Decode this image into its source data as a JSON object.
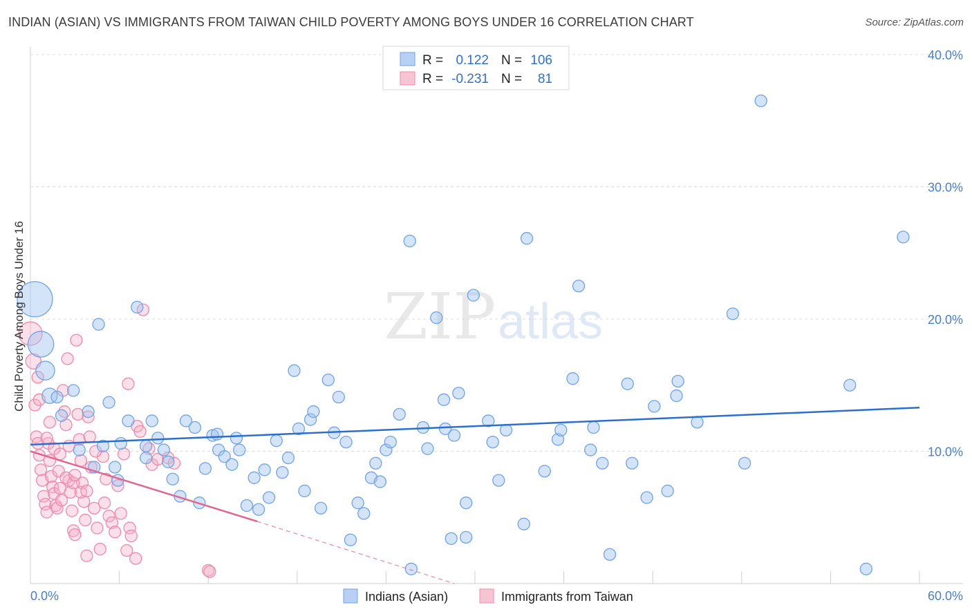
{
  "title": "INDIAN (ASIAN) VS IMMIGRANTS FROM TAIWAN CHILD POVERTY AMONG BOYS UNDER 16 CORRELATION CHART",
  "source": "Source: ZipAtlas.com",
  "watermark": {
    "zip": "ZIP",
    "atlas": "atlas"
  },
  "colors": {
    "blue": "#6fa3e6",
    "blue_line": "#2a6fd0",
    "pink": "#f08aa8",
    "pink_line": "#e06890",
    "tick": "#4a7fc8"
  },
  "legend": {
    "r_label": "R =",
    "n_label": "N =",
    "series": [
      {
        "r": "0.122",
        "n": "106"
      },
      {
        "r": "-0.231",
        "n": "81"
      }
    ]
  },
  "chart_data": {
    "type": "scatter",
    "title": "INDIAN (ASIAN) VS IMMIGRANTS FROM TAIWAN CHILD POVERTY AMONG BOYS UNDER 16 CORRELATION CHART",
    "xlabel": "",
    "ylabel": "Child Poverty Among Boys Under 16",
    "xlim": [
      0,
      60
    ],
    "ylim": [
      0,
      40
    ],
    "x_tick_labels": [
      "0.0%",
      "60.0%"
    ],
    "y_ticks": [
      10,
      20,
      30,
      40
    ],
    "y_tick_labels": [
      "10.0%",
      "20.0%",
      "30.0%",
      "40.0%"
    ],
    "series": [
      {
        "name": "Indians (Asian)",
        "color": "#6fa3e6",
        "trend": {
          "x": [
            0,
            60
          ],
          "y": [
            10.5,
            13.3
          ]
        },
        "points": [
          [
            0.3,
            21.5,
            3
          ],
          [
            0.7,
            18.1,
            2.2
          ],
          [
            1.0,
            16.1,
            1.6
          ],
          [
            1.3,
            14.2,
            1.3
          ],
          [
            1.8,
            14.1,
            1
          ],
          [
            2.1,
            12.7,
            1
          ],
          [
            2.9,
            14.6,
            1
          ],
          [
            3.3,
            10.1,
            1
          ],
          [
            3.9,
            13,
            1
          ],
          [
            4.3,
            8.8,
            1
          ],
          [
            4.9,
            10.4,
            1
          ],
          [
            5.3,
            13.7,
            1
          ],
          [
            5.7,
            8.8,
            1
          ],
          [
            5.9,
            7.8,
            1
          ],
          [
            6.1,
            10.6,
            1
          ],
          [
            6.6,
            12.3,
            1
          ],
          [
            7.2,
            20.9,
            1
          ],
          [
            7.8,
            9.5,
            1
          ],
          [
            8.2,
            12.3,
            1
          ],
          [
            8.6,
            11,
            1
          ],
          [
            9.0,
            10.1,
            1
          ],
          [
            9.3,
            9.2,
            1
          ],
          [
            9.6,
            7.9,
            1
          ],
          [
            10.1,
            6.6,
            1
          ],
          [
            10.5,
            12.3,
            1
          ],
          [
            11.1,
            11.8,
            1
          ],
          [
            11.4,
            6.1,
            1
          ],
          [
            11.8,
            8.7,
            1
          ],
          [
            12.3,
            11.2,
            1
          ],
          [
            12.7,
            10.1,
            1
          ],
          [
            13.1,
            9.6,
            1
          ],
          [
            13.6,
            9,
            1
          ],
          [
            13.9,
            11,
            1
          ],
          [
            14.1,
            10.1,
            1
          ],
          [
            14.6,
            5.9,
            1
          ],
          [
            15.1,
            8,
            1
          ],
          [
            15.4,
            5.6,
            1
          ],
          [
            15.8,
            8.6,
            1
          ],
          [
            16.1,
            6.5,
            1
          ],
          [
            16.6,
            10.8,
            1
          ],
          [
            17.0,
            8.4,
            1
          ],
          [
            17.4,
            9.5,
            1
          ],
          [
            17.8,
            16.1,
            1
          ],
          [
            18.1,
            11.7,
            1
          ],
          [
            18.5,
            7,
            1
          ],
          [
            18.9,
            12.4,
            1
          ],
          [
            19.1,
            13,
            1
          ],
          [
            19.6,
            5.7,
            1
          ],
          [
            20.1,
            15.4,
            1
          ],
          [
            20.5,
            11.4,
            1
          ],
          [
            20.8,
            14.1,
            1
          ],
          [
            21.3,
            10.7,
            1
          ],
          [
            21.6,
            3.3,
            1
          ],
          [
            22.1,
            6.1,
            1
          ],
          [
            22.5,
            5.3,
            1
          ],
          [
            23.0,
            8,
            1
          ],
          [
            23.3,
            9.1,
            1
          ],
          [
            23.6,
            7.7,
            1
          ],
          [
            24.0,
            10.1,
            1
          ],
          [
            24.3,
            10.7,
            1
          ],
          [
            24.9,
            12.8,
            1
          ],
          [
            25.6,
            25.9,
            1
          ],
          [
            25.7,
            1.1,
            1
          ],
          [
            26.5,
            11.8,
            1
          ],
          [
            26.8,
            10.2,
            1
          ],
          [
            27.4,
            20.1,
            1
          ],
          [
            27.9,
            13.9,
            1
          ],
          [
            28.0,
            11.7,
            1
          ],
          [
            28.4,
            3.4,
            1
          ],
          [
            28.6,
            11.2,
            1
          ],
          [
            28.9,
            14.4,
            1
          ],
          [
            29.4,
            6.1,
            1
          ],
          [
            29.4,
            3.5,
            1
          ],
          [
            29.9,
            21.8,
            1
          ],
          [
            30.9,
            12.3,
            1
          ],
          [
            31.2,
            10.7,
            1
          ],
          [
            31.6,
            7.8,
            1
          ],
          [
            32.1,
            11.6,
            1
          ],
          [
            33.3,
            4.5,
            1
          ],
          [
            33.5,
            26.1,
            1
          ],
          [
            34.7,
            8.5,
            1
          ],
          [
            35.6,
            10.9,
            1
          ],
          [
            35.8,
            11.6,
            1
          ],
          [
            36.6,
            15.5,
            1
          ],
          [
            37.0,
            22.5,
            1
          ],
          [
            37.8,
            10.1,
            1
          ],
          [
            38.0,
            11.8,
            1
          ],
          [
            38.6,
            9.1,
            1
          ],
          [
            39.1,
            2.2,
            1
          ],
          [
            40.3,
            15.1,
            1
          ],
          [
            40.6,
            9.1,
            1
          ],
          [
            41.6,
            6.5,
            1
          ],
          [
            42.1,
            13.4,
            1
          ],
          [
            43.0,
            7,
            1
          ],
          [
            43.6,
            14.2,
            1
          ],
          [
            43.7,
            15.3,
            1
          ],
          [
            45.0,
            12.2,
            1
          ],
          [
            47.4,
            20.4,
            1
          ],
          [
            48.2,
            9.1,
            1
          ],
          [
            49.3,
            36.5,
            1
          ],
          [
            55.3,
            15.0,
            1
          ],
          [
            56.4,
            1.1,
            1
          ],
          [
            58.9,
            26.2,
            1
          ],
          [
            4.6,
            19.6,
            1
          ],
          [
            7.8,
            10.4,
            1
          ],
          [
            12.6,
            11.3,
            1
          ]
        ]
      },
      {
        "name": "Immigrants from Taiwan",
        "color": "#f08aa8",
        "trend": {
          "x": [
            0,
            15.3
          ],
          "y": [
            10.0,
            4.7
          ]
        },
        "trend_dash": {
          "x": [
            15.3,
            28.6
          ],
          "y": [
            4.7,
            0
          ]
        },
        "points": [
          [
            0.0,
            18.9,
            2
          ],
          [
            0.2,
            16.8,
            1.3
          ],
          [
            0.3,
            13.5,
            1
          ],
          [
            0.4,
            11.1,
            1
          ],
          [
            0.5,
            10.6,
            1
          ],
          [
            0.6,
            9.7,
            1
          ],
          [
            0.7,
            8.6,
            1
          ],
          [
            0.8,
            7.8,
            1
          ],
          [
            0.9,
            6.6,
            1
          ],
          [
            1.0,
            6.0,
            1
          ],
          [
            1.1,
            5.4,
            1
          ],
          [
            1.2,
            10.6,
            1
          ],
          [
            1.3,
            9.3,
            1
          ],
          [
            1.4,
            8.1,
            1
          ],
          [
            1.5,
            7.3,
            1
          ],
          [
            1.6,
            6.8,
            1
          ],
          [
            1.7,
            5.9,
            1
          ],
          [
            1.8,
            5.7,
            1
          ],
          [
            1.9,
            8.5,
            1
          ],
          [
            2.0,
            7.2,
            1
          ],
          [
            2.1,
            6.3,
            1
          ],
          [
            2.2,
            14.6,
            1
          ],
          [
            2.3,
            13.0,
            1
          ],
          [
            2.4,
            12.0,
            1
          ],
          [
            2.5,
            17.0,
            1
          ],
          [
            2.6,
            7.8,
            1
          ],
          [
            2.7,
            6.9,
            1
          ],
          [
            2.8,
            5.5,
            1
          ],
          [
            2.9,
            4.0,
            1
          ],
          [
            3.0,
            3.7,
            1
          ],
          [
            3.1,
            18.4,
            1
          ],
          [
            3.2,
            12.8,
            1
          ],
          [
            3.3,
            10.9,
            1
          ],
          [
            3.4,
            9.3,
            1
          ],
          [
            3.5,
            7.6,
            1
          ],
          [
            3.6,
            6.2,
            1
          ],
          [
            3.7,
            4.8,
            1
          ],
          [
            3.8,
            2.1,
            1
          ],
          [
            3.9,
            12.6,
            1
          ],
          [
            4.0,
            11.1,
            1
          ],
          [
            4.1,
            8.8,
            1
          ],
          [
            4.3,
            5.7,
            1
          ],
          [
            4.5,
            4.2,
            1
          ],
          [
            4.7,
            2.6,
            1
          ],
          [
            4.9,
            9.6,
            1
          ],
          [
            5.1,
            7.9,
            1
          ],
          [
            5.3,
            5.1,
            1
          ],
          [
            5.5,
            4.6,
            1
          ],
          [
            5.7,
            3.9,
            1
          ],
          [
            5.9,
            7.4,
            1
          ],
          [
            6.1,
            5.3,
            1
          ],
          [
            6.3,
            9.8,
            1
          ],
          [
            6.5,
            2.5,
            1
          ],
          [
            6.6,
            15.1,
            1
          ],
          [
            6.7,
            4.2,
            1
          ],
          [
            6.8,
            3.6,
            1
          ],
          [
            7.1,
            1.9,
            1
          ],
          [
            7.2,
            11.9,
            1
          ],
          [
            7.4,
            11.5,
            1
          ],
          [
            7.6,
            20.7,
            1
          ],
          [
            8.0,
            10.2,
            1
          ],
          [
            8.2,
            9.0,
            1
          ],
          [
            8.6,
            9.4,
            1
          ],
          [
            9.3,
            9.5,
            1
          ],
          [
            9.7,
            9.1,
            1
          ],
          [
            12.0,
            1.0,
            1
          ],
          [
            12.1,
            0.9,
            1
          ],
          [
            0.5,
            15.6,
            1
          ],
          [
            1.1,
            11.0,
            1
          ],
          [
            1.6,
            10.2,
            1
          ],
          [
            2.0,
            9.8,
            1
          ],
          [
            2.4,
            8.0,
            1
          ],
          [
            2.9,
            7.6,
            1
          ],
          [
            3.4,
            6.9,
            1
          ],
          [
            0.6,
            13.9,
            1
          ],
          [
            1.3,
            12.2,
            1
          ],
          [
            2.6,
            10.4,
            1
          ],
          [
            3.0,
            8.2,
            1
          ],
          [
            3.8,
            7.0,
            1
          ],
          [
            4.4,
            10.0,
            1
          ],
          [
            5.0,
            6.1,
            1
          ]
        ]
      }
    ]
  }
}
